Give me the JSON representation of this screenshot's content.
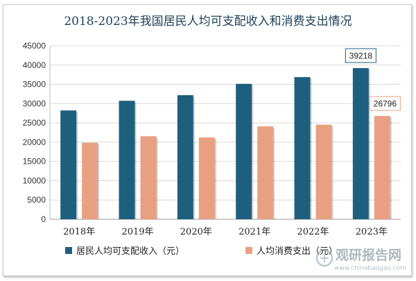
{
  "chart_data": {
    "type": "bar",
    "title": "2018-2023年我国居民人均可支配收入和消费支出情况",
    "categories": [
      "2018年",
      "2019年",
      "2020年",
      "2021年",
      "2022年",
      "2023年"
    ],
    "series": [
      {
        "name": "居民人均可支配收入（元）",
        "color": "#1e5f7e",
        "values": [
          28228,
          30733,
          32189,
          35128,
          36883,
          39218
        ]
      },
      {
        "name": "人均消费支出（元）",
        "color": "#e9a082",
        "values": [
          19853,
          21559,
          21210,
          24100,
          24538,
          26796
        ]
      }
    ],
    "ylim": [
      0,
      45000
    ],
    "yticks": [
      0,
      5000,
      10000,
      15000,
      20000,
      25000,
      30000,
      35000,
      40000,
      45000
    ],
    "annotations": [
      {
        "series": 0,
        "index": 5,
        "text": "39218"
      },
      {
        "series": 1,
        "index": 5,
        "text": "26796"
      }
    ],
    "legend_position": "bottom",
    "xlabel": "",
    "ylabel": ""
  },
  "watermark": {
    "name": "观研报告网",
    "url": "www.chinabaogao.com"
  }
}
